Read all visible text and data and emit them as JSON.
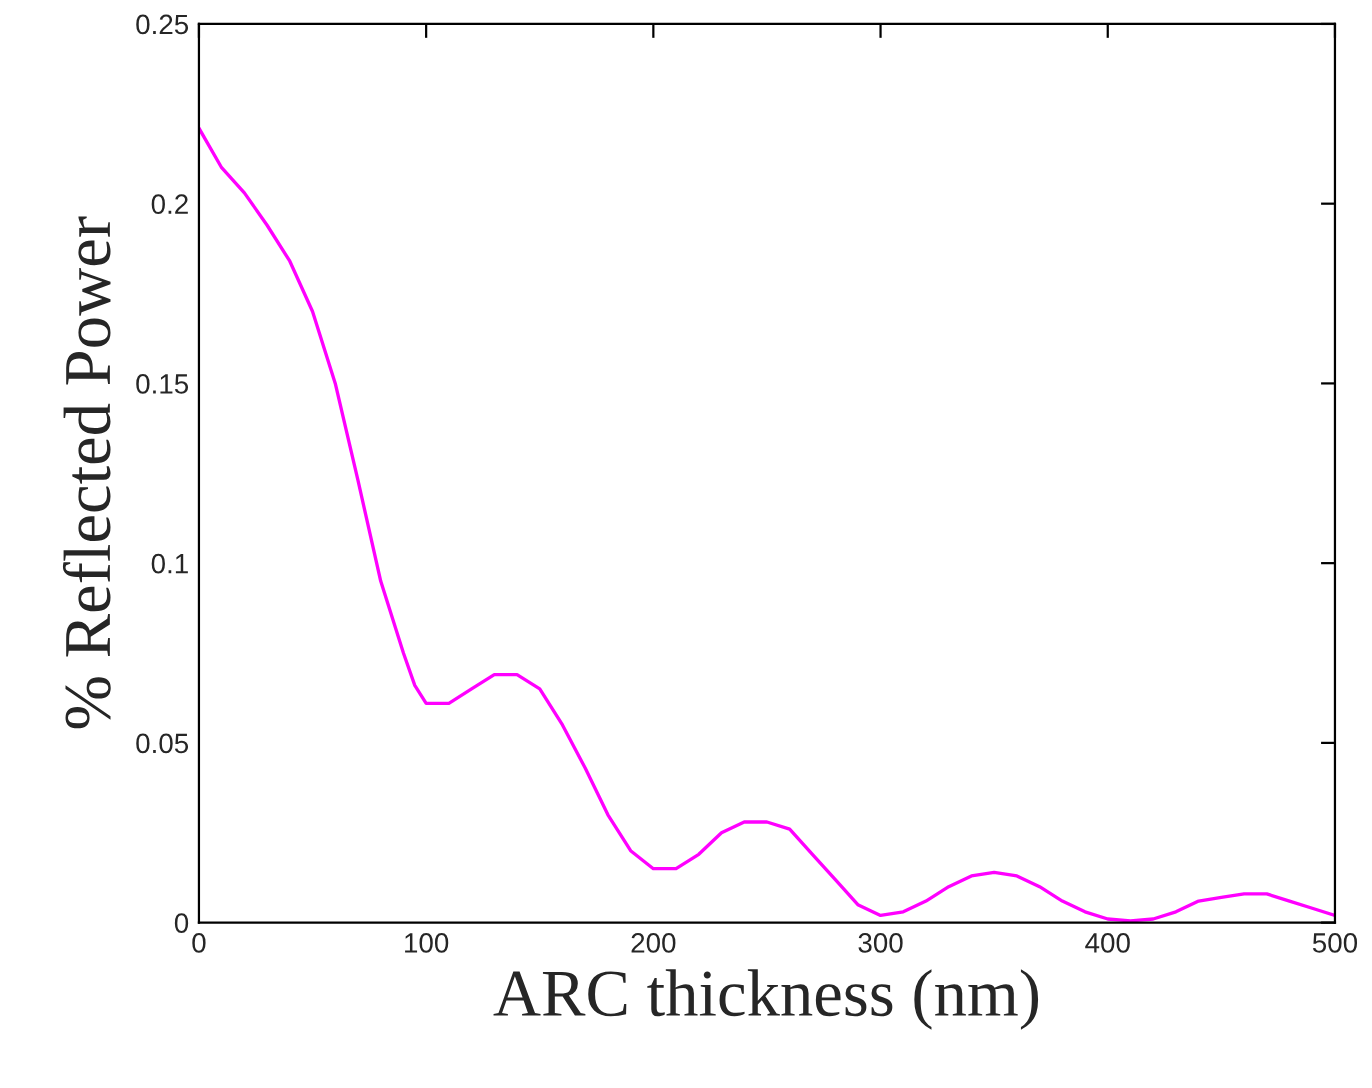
{
  "chart_data": {
    "type": "line",
    "xlabel": "ARC thickness (nm)",
    "ylabel": "% Reflected Power",
    "x": [
      0,
      10,
      20,
      30,
      40,
      50,
      60,
      70,
      80,
      90,
      95,
      100,
      110,
      120,
      130,
      140,
      150,
      160,
      170,
      180,
      190,
      200,
      210,
      220,
      230,
      240,
      250,
      260,
      270,
      280,
      290,
      300,
      310,
      320,
      330,
      340,
      350,
      360,
      370,
      380,
      390,
      400,
      410,
      420,
      430,
      440,
      450,
      460,
      470,
      480,
      490,
      500
    ],
    "series": [
      {
        "color": "#ff00ff",
        "values": [
          0.221,
          0.21,
          0.203,
          0.194,
          0.184,
          0.17,
          0.15,
          0.123,
          0.095,
          0.075,
          0.066,
          0.061,
          0.061,
          0.065,
          0.069,
          0.069,
          0.065,
          0.055,
          0.043,
          0.03,
          0.02,
          0.015,
          0.015,
          0.019,
          0.025,
          0.028,
          0.028,
          0.026,
          0.019,
          0.012,
          0.005,
          0.002,
          0.003,
          0.006,
          0.01,
          0.013,
          0.014,
          0.013,
          0.01,
          0.006,
          0.003,
          0.001,
          0.0005,
          0.001,
          0.003,
          0.006,
          0.007,
          0.008,
          0.008,
          0.006,
          0.004,
          0.002
        ]
      }
    ],
    "xlim": [
      0,
      500
    ],
    "xticks": [
      0,
      100,
      200,
      300,
      400,
      500
    ],
    "ylim": [
      0,
      0.25
    ],
    "yticks": [
      0,
      0.05,
      0.1,
      0.15,
      0.2,
      0.25
    ],
    "grid": false,
    "legend": false,
    "marker": "none",
    "line_style": "solid"
  }
}
